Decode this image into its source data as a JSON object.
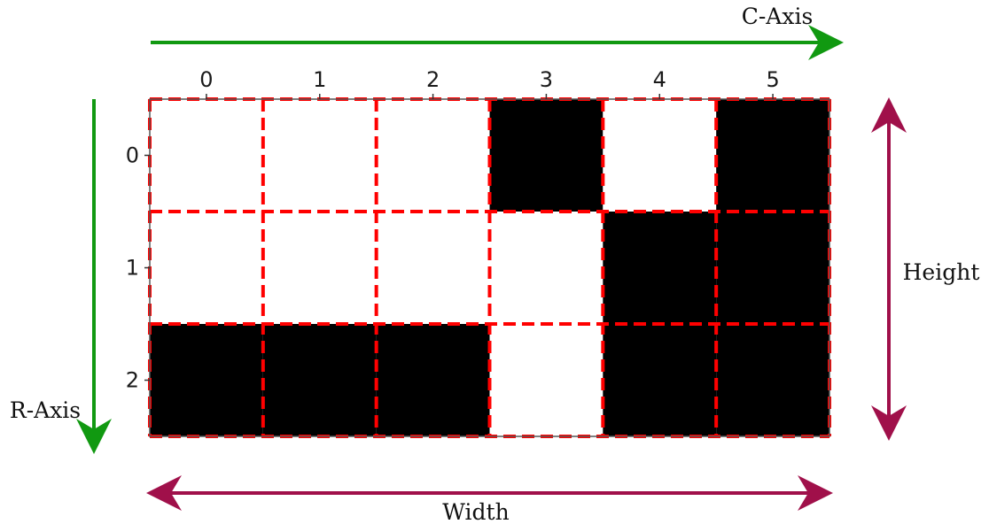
{
  "grid": {
    "rows": 3,
    "cols": 6,
    "cells": [
      [
        0,
        0,
        0,
        1,
        0,
        1
      ],
      [
        0,
        0,
        0,
        0,
        1,
        1
      ],
      [
        1,
        1,
        1,
        0,
        1,
        1
      ]
    ],
    "column_ticks": [
      "0",
      "1",
      "2",
      "3",
      "4",
      "5"
    ],
    "row_ticks": [
      "0",
      "1",
      "2"
    ]
  },
  "labels": {
    "c_axis": "C-Axis",
    "r_axis": "R-Axis",
    "height": "Height",
    "width": "Width"
  },
  "colors": {
    "filled_cell": "#000000",
    "empty_cell": "#ffffff",
    "grid_dash": "#ff0000",
    "axis_arrow": "#119911",
    "dimension_arrow": "#a0104a"
  }
}
